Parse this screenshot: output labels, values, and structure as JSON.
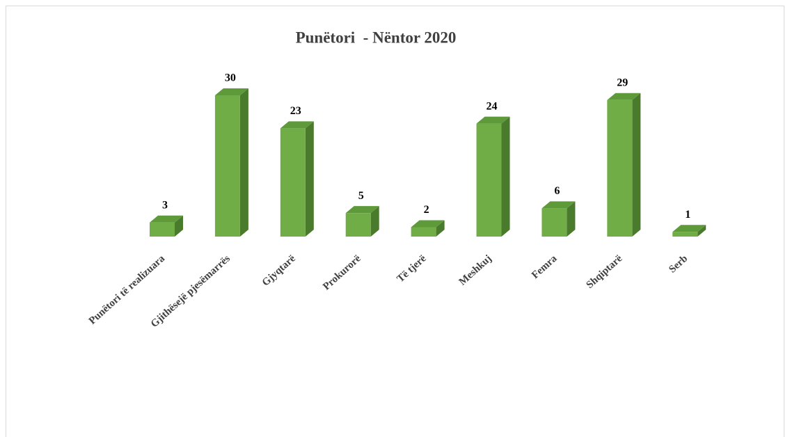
{
  "chart_data": {
    "type": "bar3d",
    "title": "Punëtori  - Nëntor 2020",
    "categories": [
      "Punëtori të realizuara",
      "Gjithësejë pjesëmarrës",
      "Gjyqtarë",
      "Prokurorë",
      "Të tjerë",
      "Meshkuj",
      "Femra",
      "Shqiptarë",
      "Serb"
    ],
    "values": [
      3,
      30,
      23,
      5,
      2,
      24,
      6,
      29,
      1
    ],
    "color": "#70ad47"
  }
}
